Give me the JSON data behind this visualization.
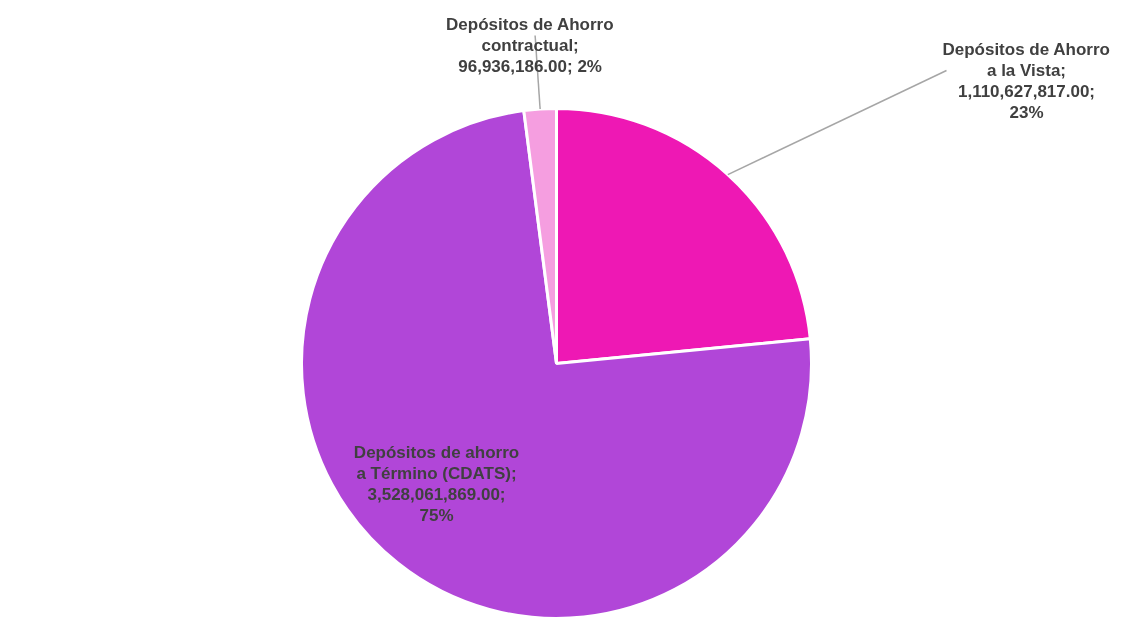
{
  "chart_data": {
    "type": "pie",
    "categories": [
      "Depósitos de Ahorro a la Vista",
      "Depósitos de ahorro a Término (CDATS)",
      "Depósitos de Ahorro contractual"
    ],
    "values": [
      1110627817.0,
      3528061869.0,
      96936186.0
    ],
    "colors": [
      "#ee18b4",
      "#b146d8",
      "#f59ee0"
    ],
    "value_labels": [
      "; 1,110,627,817.00; 23%",
      "; 3,528,061,869.00; 75%",
      "; 96,936,186.00; 2%"
    ],
    "legend": false
  }
}
